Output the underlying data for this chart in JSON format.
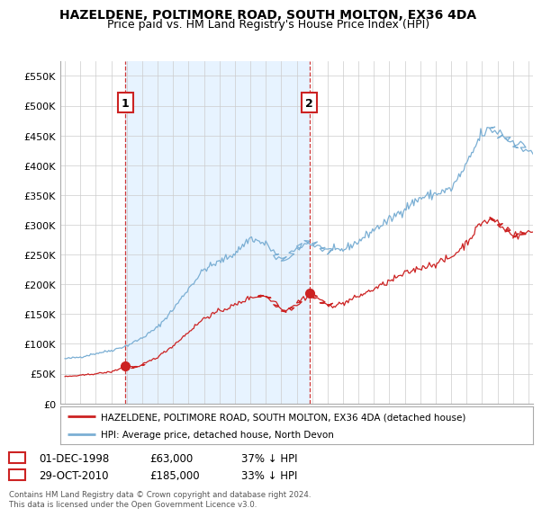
{
  "title": "HAZELDENE, POLTIMORE ROAD, SOUTH MOLTON, EX36 4DA",
  "subtitle": "Price paid vs. HM Land Registry's House Price Index (HPI)",
  "legend_line1": "HAZELDENE, POLTIMORE ROAD, SOUTH MOLTON, EX36 4DA (detached house)",
  "legend_line2": "HPI: Average price, detached house, North Devon",
  "footer": "Contains HM Land Registry data © Crown copyright and database right 2024.\nThis data is licensed under the Open Government Licence v3.0.",
  "sale1_date": "01-DEC-1998",
  "sale1_price": "£63,000",
  "sale1_hpi": "37% ↓ HPI",
  "sale2_date": "29-OCT-2010",
  "sale2_price": "£185,000",
  "sale2_hpi": "33% ↓ HPI",
  "ylim": [
    0,
    575000
  ],
  "yticks": [
    0,
    50000,
    100000,
    150000,
    200000,
    250000,
    300000,
    350000,
    400000,
    450000,
    500000,
    550000
  ],
  "ytick_labels": [
    "£0",
    "£50K",
    "£100K",
    "£150K",
    "£200K",
    "£250K",
    "£300K",
    "£350K",
    "£400K",
    "£450K",
    "£500K",
    "£550K"
  ],
  "hpi_color": "#7bafd4",
  "price_color": "#cc2222",
  "sale_marker_color": "#cc2222",
  "annotation_box_color": "#cc2222",
  "shade_color": "#ddeeff",
  "bg_color": "#ffffff",
  "grid_color": "#cccccc",
  "title_fontsize": 10,
  "subtitle_fontsize": 9,
  "sale1_x_year": 1998.92,
  "sale1_y": 63000,
  "sale2_x_year": 2010.83,
  "sale2_y": 185000,
  "xlim_left": 1994.7,
  "xlim_right": 2025.3
}
